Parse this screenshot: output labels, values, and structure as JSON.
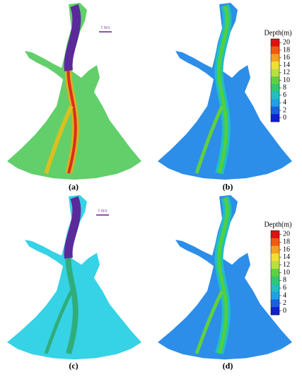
{
  "panels": [
    {
      "label": "(a)",
      "scale_label": "1 m/s"
    },
    {
      "label": "(b)",
      "colorbar": {
        "title": "Depth(m)",
        "ticks": [
          20,
          18,
          16,
          14,
          12,
          10,
          8,
          6,
          4,
          2,
          0
        ],
        "colors": [
          "#e01010",
          "#f05a10",
          "#f5a020",
          "#f0e030",
          "#b8e040",
          "#60d040",
          "#30c870",
          "#20c0c0",
          "#20a0e8",
          "#1a60e0",
          "#1020d0"
        ]
      }
    },
    {
      "label": "(c)",
      "scale_label": "1 m/s"
    },
    {
      "label": "(d)",
      "colorbar": {
        "title": "Depth(m)",
        "ticks": [
          20,
          18,
          16,
          14,
          12,
          10,
          8,
          6,
          4,
          2,
          0
        ],
        "colors": [
          "#e01010",
          "#f05a10",
          "#f5a020",
          "#f0e030",
          "#b8e040",
          "#60d040",
          "#30c870",
          "#20c0c0",
          "#20a0e8",
          "#1a60e0",
          "#1020d0"
        ]
      }
    }
  ]
}
